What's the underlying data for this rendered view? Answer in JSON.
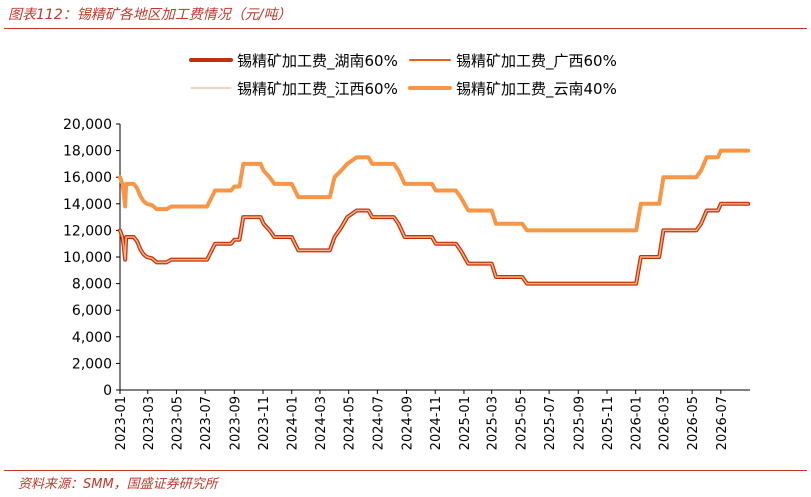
{
  "figure": {
    "title": "图表112：锡精矿各地区加工费情况（元/吨）",
    "source": "资料来源：SMM，国盛证券研究所"
  },
  "chart_data": {
    "type": "line",
    "title": "",
    "xlabel": "",
    "ylabel": "",
    "ylim": [
      0,
      20000
    ],
    "yticks": [
      0,
      2000,
      4000,
      6000,
      8000,
      10000,
      12000,
      14000,
      16000,
      18000,
      20000
    ],
    "ytick_labels": [
      "0",
      "2,000",
      "4,000",
      "6,000",
      "8,000",
      "10,000",
      "12,000",
      "14,000",
      "16,000",
      "18,000",
      "20,000"
    ],
    "xlim": [
      "2023-01",
      "2026-09"
    ],
    "xtick_labels": [
      "2023-01",
      "2023-03",
      "2023-05",
      "2023-07",
      "2023-09",
      "2023-11",
      "2024-01",
      "2024-03",
      "2024-05",
      "2024-07",
      "2024-09",
      "2024-11",
      "2025-01",
      "2025-03",
      "2025-05",
      "2025-07",
      "2025-09",
      "2025-11",
      "2026-01",
      "2026-03",
      "2026-05",
      "2026-07"
    ],
    "grid": false,
    "legend_position": "top",
    "series": [
      {
        "name": "锡精矿加工费_湖南60%",
        "color": "#c0300d",
        "width": 4,
        "points": [
          [
            "2023-01-01",
            12000
          ],
          [
            "2023-01-06",
            11500
          ],
          [
            "2023-01-09",
            10800
          ],
          [
            "2023-01-12",
            9800
          ],
          [
            "2023-01-14",
            11500
          ],
          [
            "2023-01-30",
            11500
          ],
          [
            "2023-02-06",
            11200
          ],
          [
            "2023-02-13",
            10600
          ],
          [
            "2023-02-20",
            10200
          ],
          [
            "2023-02-27",
            10000
          ],
          [
            "2023-03-10",
            9900
          ],
          [
            "2023-03-20",
            9600
          ],
          [
            "2023-04-10",
            9600
          ],
          [
            "2023-04-20",
            9800
          ],
          [
            "2023-07-05",
            9800
          ],
          [
            "2023-07-15",
            10500
          ],
          [
            "2023-07-22",
            11000
          ],
          [
            "2023-08-25",
            11000
          ],
          [
            "2023-09-01",
            11300
          ],
          [
            "2023-09-12",
            11300
          ],
          [
            "2023-09-20",
            13000
          ],
          [
            "2023-10-27",
            13000
          ],
          [
            "2023-11-02",
            12500
          ],
          [
            "2023-11-15",
            12000
          ],
          [
            "2023-11-25",
            11500
          ],
          [
            "2024-01-01",
            11500
          ],
          [
            "2024-01-15",
            10500
          ],
          [
            "2024-03-22",
            10500
          ],
          [
            "2024-04-01",
            11500
          ],
          [
            "2024-04-15",
            12200
          ],
          [
            "2024-04-28",
            13000
          ],
          [
            "2024-05-18",
            13500
          ],
          [
            "2024-06-12",
            13500
          ],
          [
            "2024-06-20",
            13000
          ],
          [
            "2024-08-05",
            13000
          ],
          [
            "2024-08-15",
            12500
          ],
          [
            "2024-08-28",
            11500
          ],
          [
            "2024-10-25",
            11500
          ],
          [
            "2024-11-02",
            11000
          ],
          [
            "2024-12-15",
            11000
          ],
          [
            "2024-12-25",
            10500
          ],
          [
            "2025-01-02",
            10000
          ],
          [
            "2025-01-10",
            9500
          ],
          [
            "2025-03-01",
            9500
          ],
          [
            "2025-03-10",
            8500
          ],
          [
            "2025-05-05",
            8500
          ],
          [
            "2025-05-15",
            8000
          ],
          [
            "2026-01-02",
            8000
          ],
          [
            "2026-01-12",
            10000
          ],
          [
            "2026-02-20",
            10000
          ],
          [
            "2026-03-01",
            12000
          ],
          [
            "2026-05-10",
            12000
          ],
          [
            "2026-05-20",
            12500
          ],
          [
            "2026-06-01",
            13500
          ],
          [
            "2026-06-25",
            13500
          ],
          [
            "2026-07-01",
            14000
          ],
          [
            "2026-08-28",
            14000
          ]
        ]
      },
      {
        "name": "锡精矿加工费_广西60%",
        "color": "#e8611a",
        "width": 2,
        "points": [
          [
            "2023-01-01",
            12000
          ],
          [
            "2023-01-06",
            11500
          ],
          [
            "2023-01-09",
            10800
          ],
          [
            "2023-01-12",
            9800
          ],
          [
            "2023-01-14",
            11500
          ],
          [
            "2023-01-30",
            11500
          ],
          [
            "2023-02-06",
            11200
          ],
          [
            "2023-02-13",
            10600
          ],
          [
            "2023-02-20",
            10200
          ],
          [
            "2023-02-27",
            10000
          ],
          [
            "2023-03-10",
            9900
          ],
          [
            "2023-03-20",
            9600
          ],
          [
            "2023-04-10",
            9600
          ],
          [
            "2023-04-20",
            9800
          ],
          [
            "2023-07-05",
            9800
          ],
          [
            "2023-07-15",
            10500
          ],
          [
            "2023-07-22",
            11000
          ],
          [
            "2023-08-25",
            11000
          ],
          [
            "2023-09-01",
            11300
          ],
          [
            "2023-09-12",
            11300
          ],
          [
            "2023-09-20",
            13000
          ],
          [
            "2023-10-27",
            13000
          ],
          [
            "2023-11-02",
            12500
          ],
          [
            "2023-11-15",
            12000
          ],
          [
            "2023-11-25",
            11500
          ],
          [
            "2024-01-01",
            11500
          ],
          [
            "2024-01-15",
            10500
          ],
          [
            "2024-03-22",
            10500
          ],
          [
            "2024-04-01",
            11500
          ],
          [
            "2024-04-15",
            12200
          ],
          [
            "2024-04-28",
            13000
          ],
          [
            "2024-05-18",
            13500
          ],
          [
            "2024-06-12",
            13500
          ],
          [
            "2024-06-20",
            13000
          ],
          [
            "2024-08-05",
            13000
          ],
          [
            "2024-08-15",
            12500
          ],
          [
            "2024-08-28",
            11500
          ],
          [
            "2024-10-25",
            11500
          ],
          [
            "2024-11-02",
            11000
          ],
          [
            "2024-12-15",
            11000
          ],
          [
            "2024-12-25",
            10500
          ],
          [
            "2025-01-02",
            10000
          ],
          [
            "2025-01-10",
            9500
          ],
          [
            "2025-03-01",
            9500
          ],
          [
            "2025-03-10",
            8500
          ],
          [
            "2025-05-05",
            8500
          ],
          [
            "2025-05-15",
            8000
          ],
          [
            "2026-01-02",
            8000
          ],
          [
            "2026-01-12",
            10000
          ],
          [
            "2026-02-20",
            10000
          ],
          [
            "2026-03-01",
            12000
          ],
          [
            "2026-05-10",
            12000
          ],
          [
            "2026-05-20",
            12500
          ],
          [
            "2026-06-01",
            13500
          ],
          [
            "2026-06-25",
            13500
          ],
          [
            "2026-07-01",
            14000
          ],
          [
            "2026-08-28",
            14000
          ]
        ]
      },
      {
        "name": "锡精矿加工费_江西60%",
        "color": "#f2b896",
        "width": 1.2,
        "points": [
          [
            "2023-01-01",
            12000
          ],
          [
            "2023-01-06",
            11500
          ],
          [
            "2023-01-09",
            10800
          ],
          [
            "2023-01-12",
            9800
          ],
          [
            "2023-01-14",
            11500
          ],
          [
            "2023-01-30",
            11500
          ],
          [
            "2023-02-06",
            11200
          ],
          [
            "2023-02-13",
            10600
          ],
          [
            "2023-02-20",
            10200
          ],
          [
            "2023-02-27",
            10000
          ],
          [
            "2023-03-10",
            9900
          ],
          [
            "2023-03-20",
            9600
          ],
          [
            "2023-04-10",
            9600
          ],
          [
            "2023-04-20",
            9800
          ],
          [
            "2023-07-05",
            9800
          ],
          [
            "2023-07-15",
            10500
          ],
          [
            "2023-07-22",
            11000
          ],
          [
            "2023-08-25",
            11000
          ],
          [
            "2023-09-01",
            11300
          ],
          [
            "2023-09-12",
            11300
          ],
          [
            "2023-09-20",
            13000
          ],
          [
            "2023-10-27",
            13000
          ],
          [
            "2023-11-02",
            12500
          ],
          [
            "2023-11-15",
            12000
          ],
          [
            "2023-11-25",
            11500
          ],
          [
            "2024-01-01",
            11500
          ],
          [
            "2024-01-15",
            10500
          ],
          [
            "2024-03-22",
            10500
          ],
          [
            "2024-04-01",
            11500
          ],
          [
            "2024-04-15",
            12200
          ],
          [
            "2024-04-28",
            13000
          ],
          [
            "2024-05-18",
            13500
          ],
          [
            "2024-06-12",
            13500
          ],
          [
            "2024-06-20",
            13000
          ],
          [
            "2024-08-05",
            13000
          ],
          [
            "2024-08-15",
            12500
          ],
          [
            "2024-08-28",
            11500
          ],
          [
            "2024-10-25",
            11500
          ],
          [
            "2024-11-02",
            11000
          ],
          [
            "2024-12-15",
            11000
          ],
          [
            "2024-12-25",
            10500
          ],
          [
            "2025-01-02",
            10000
          ],
          [
            "2025-01-10",
            9500
          ],
          [
            "2025-03-01",
            9500
          ],
          [
            "2025-03-10",
            8500
          ],
          [
            "2025-05-05",
            8500
          ],
          [
            "2025-05-15",
            8000
          ],
          [
            "2026-01-02",
            8000
          ],
          [
            "2026-01-12",
            10000
          ],
          [
            "2026-02-20",
            10000
          ],
          [
            "2026-03-01",
            12000
          ],
          [
            "2026-05-10",
            12000
          ],
          [
            "2026-05-20",
            12500
          ],
          [
            "2026-06-01",
            13500
          ],
          [
            "2026-06-25",
            13500
          ],
          [
            "2026-07-01",
            14000
          ],
          [
            "2026-08-28",
            14000
          ]
        ]
      },
      {
        "name": "锡精矿加工费_云南40%",
        "color": "#f79646",
        "width": 4,
        "points": [
          [
            "2023-01-01",
            16000
          ],
          [
            "2023-01-06",
            15500
          ],
          [
            "2023-01-09",
            14800
          ],
          [
            "2023-01-12",
            13800
          ],
          [
            "2023-01-14",
            15500
          ],
          [
            "2023-01-30",
            15500
          ],
          [
            "2023-02-06",
            15200
          ],
          [
            "2023-02-13",
            14600
          ],
          [
            "2023-02-20",
            14200
          ],
          [
            "2023-02-27",
            14000
          ],
          [
            "2023-03-10",
            13900
          ],
          [
            "2023-03-20",
            13600
          ],
          [
            "2023-04-10",
            13600
          ],
          [
            "2023-04-20",
            13800
          ],
          [
            "2023-07-05",
            13800
          ],
          [
            "2023-07-15",
            14500
          ],
          [
            "2023-07-22",
            15000
          ],
          [
            "2023-08-25",
            15000
          ],
          [
            "2023-09-01",
            15300
          ],
          [
            "2023-09-12",
            15300
          ],
          [
            "2023-09-20",
            17000
          ],
          [
            "2023-10-27",
            17000
          ],
          [
            "2023-11-02",
            16500
          ],
          [
            "2023-11-15",
            16000
          ],
          [
            "2023-11-25",
            15500
          ],
          [
            "2024-01-01",
            15500
          ],
          [
            "2024-01-15",
            14500
          ],
          [
            "2024-03-22",
            14500
          ],
          [
            "2024-04-01",
            16000
          ],
          [
            "2024-04-15",
            16500
          ],
          [
            "2024-04-28",
            17000
          ],
          [
            "2024-05-18",
            17500
          ],
          [
            "2024-06-12",
            17500
          ],
          [
            "2024-06-20",
            17000
          ],
          [
            "2024-08-05",
            17000
          ],
          [
            "2024-08-15",
            16500
          ],
          [
            "2024-08-28",
            15500
          ],
          [
            "2024-10-25",
            15500
          ],
          [
            "2024-11-02",
            15000
          ],
          [
            "2024-12-15",
            15000
          ],
          [
            "2024-12-25",
            14500
          ],
          [
            "2025-01-02",
            14000
          ],
          [
            "2025-01-10",
            13500
          ],
          [
            "2025-03-01",
            13500
          ],
          [
            "2025-03-10",
            12500
          ],
          [
            "2025-05-05",
            12500
          ],
          [
            "2025-05-15",
            12000
          ],
          [
            "2026-01-02",
            12000
          ],
          [
            "2026-01-12",
            14000
          ],
          [
            "2026-02-20",
            14000
          ],
          [
            "2026-03-01",
            16000
          ],
          [
            "2026-05-10",
            16000
          ],
          [
            "2026-05-20",
            16500
          ],
          [
            "2026-06-01",
            17500
          ],
          [
            "2026-06-25",
            17500
          ],
          [
            "2026-07-01",
            18000
          ],
          [
            "2026-08-28",
            18000
          ]
        ]
      }
    ]
  }
}
